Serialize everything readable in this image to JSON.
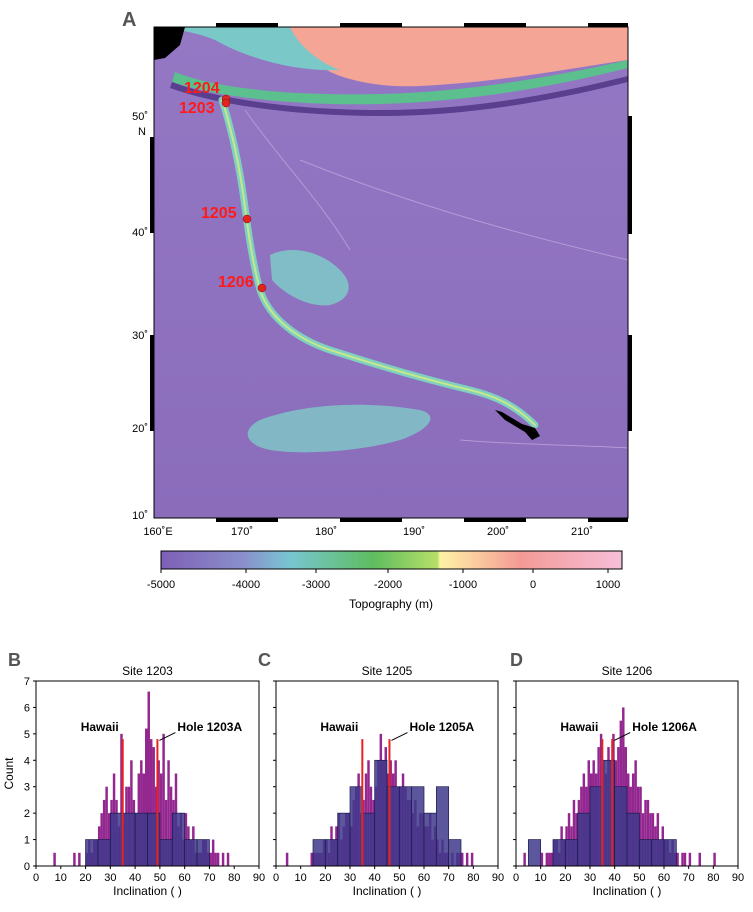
{
  "panels": {
    "a": "A",
    "b": "B",
    "c": "C",
    "d": "D"
  },
  "map": {
    "lat_ticks": [
      "50˚",
      "40˚",
      "30˚",
      "20˚",
      "10˚"
    ],
    "lat_unit": "N",
    "lon_ticks": [
      "160˚E",
      "170˚",
      "180˚",
      "190˚",
      "200˚",
      "210˚"
    ],
    "sites": [
      "1204",
      "1203",
      "1205",
      "1206"
    ],
    "colors": {
      "site": "#ff1a1a",
      "ocean": "#8f6fbd",
      "chain": "#7fd0c0",
      "land": "#000000",
      "highland": "#f4a596"
    }
  },
  "colorbar": {
    "ticks": [
      "-5000",
      "-4000",
      "-3000",
      "-2000",
      "-1000",
      "0",
      "1000"
    ],
    "label": "Topography (m)",
    "stops": [
      "#7e5fb6",
      "#77c6d1",
      "#5fbd60",
      "#b6e068",
      "#fff2a5",
      "#f49a96",
      "#f7bfd9"
    ]
  },
  "chart_data": [
    {
      "type": "bar",
      "title": "Site 1203",
      "xlabel": "Inclination ( )",
      "ylabel": "Count",
      "xlim": [
        0,
        90
      ],
      "ylim": [
        0,
        7
      ],
      "xticks": [
        0,
        10,
        20,
        30,
        40,
        50,
        60,
        70,
        80,
        90
      ],
      "yticks": [
        0,
        1,
        2,
        3,
        4,
        5,
        6,
        7
      ],
      "fine_bin_width": 1,
      "fine_bins_start": 7,
      "fine_counts": [
        0.5,
        0,
        0,
        0,
        0,
        0,
        0,
        0,
        0.5,
        0,
        0.5,
        0,
        0,
        0.5,
        1,
        0.5,
        1,
        1,
        1.5,
        2,
        2.5,
        3,
        2,
        2.5,
        3.5,
        2.5,
        1.5,
        5,
        2,
        3,
        3,
        4,
        2.5,
        2,
        3.5,
        4,
        3.5,
        5.2,
        6.6,
        4.8,
        4.5,
        3,
        4,
        3.5,
        5,
        2.5,
        4,
        3,
        2.5,
        3.5,
        1.5,
        2,
        1,
        2,
        1.5,
        1,
        1.5,
        0.5,
        0.5,
        0.5,
        1,
        1,
        0.5,
        0.5,
        1,
        0.5,
        0.5,
        0,
        0.5,
        0,
        0.5
      ],
      "coarse_bin_width": 5,
      "coarse_bins": [
        [
          20,
          1
        ],
        [
          25,
          1
        ],
        [
          30,
          2
        ],
        [
          35,
          2
        ],
        [
          40,
          2
        ],
        [
          45,
          2
        ],
        [
          50,
          1
        ],
        [
          55,
          2
        ],
        [
          60,
          1
        ],
        [
          65,
          1
        ],
        [
          70,
          0
        ]
      ],
      "reference_lines": [
        {
          "label": "Hawaii",
          "x": 35
        },
        {
          "label": "Hole 1203A",
          "x": 49
        }
      ],
      "colors": {
        "fine": "#93278f",
        "coarse": "#3f3a8c",
        "line": "#e8231f"
      }
    },
    {
      "type": "bar",
      "title": "Site 1205",
      "xlabel": "Inclination ( )",
      "ylabel": "",
      "xlim": [
        0,
        90
      ],
      "ylim": [
        0,
        7
      ],
      "xticks": [
        0,
        10,
        20,
        30,
        40,
        50,
        60,
        70,
        80,
        90
      ],
      "yticks": [
        0,
        1,
        2,
        3,
        4,
        5,
        6,
        7
      ],
      "fine_bin_width": 1,
      "fine_bins_start": 4,
      "fine_counts": [
        0.5,
        0,
        0,
        0,
        0,
        0,
        0,
        0,
        0,
        0,
        0.5,
        0.5,
        0.5,
        0.5,
        0.5,
        1,
        1,
        0.5,
        1.5,
        1,
        1.5,
        2,
        1,
        1.5,
        2,
        2,
        1.5,
        2.5,
        3,
        3.5,
        2,
        2.5,
        3.5,
        4,
        3,
        2.5,
        3,
        4,
        5,
        4,
        4.5,
        3.5,
        4,
        3.5,
        4,
        3,
        3,
        3.5,
        3,
        2.5,
        2.5,
        2,
        2.5,
        1.5,
        2,
        2,
        1.5,
        1.5,
        2,
        1,
        1.5,
        1,
        0.5,
        1,
        0.5,
        0.5,
        0,
        0.5,
        0,
        0.5,
        0.5,
        0.5,
        0,
        0.5,
        0,
        0.5
      ],
      "coarse_bin_width": 5,
      "coarse_bins": [
        [
          15,
          1
        ],
        [
          20,
          1
        ],
        [
          25,
          2
        ],
        [
          30,
          3
        ],
        [
          35,
          2
        ],
        [
          40,
          4
        ],
        [
          45,
          3
        ],
        [
          50,
          3
        ],
        [
          55,
          3
        ],
        [
          60,
          2
        ],
        [
          65,
          3
        ],
        [
          70,
          1
        ]
      ],
      "reference_lines": [
        {
          "label": "Hawaii",
          "x": 35
        },
        {
          "label": "Hole 1205A",
          "x": 46
        }
      ],
      "colors": {
        "fine": "#93278f",
        "coarse": "#3f3a8c",
        "line": "#e8231f"
      }
    },
    {
      "type": "bar",
      "title": "Site 1206",
      "xlabel": "Inclination ( )",
      "ylabel": "",
      "xlim": [
        0,
        90
      ],
      "ylim": [
        0,
        7
      ],
      "xticks": [
        0,
        10,
        20,
        30,
        40,
        50,
        60,
        70,
        80,
        90
      ],
      "yticks": [
        0,
        1,
        2,
        3,
        4,
        5,
        6,
        7
      ],
      "fine_bin_width": 1,
      "fine_bins_start": 3,
      "fine_counts": [
        0.5,
        0,
        0,
        0,
        0,
        0,
        0,
        0.5,
        0,
        0.5,
        0.5,
        0.5,
        1,
        1,
        0.5,
        1.5,
        1,
        1.5,
        2,
        1.5,
        2.5,
        2,
        2.5,
        3,
        3.5,
        3,
        4,
        3.5,
        4,
        3.5,
        4.5,
        5,
        4,
        3.5,
        4.5,
        4,
        5,
        4,
        4.5,
        5.5,
        6,
        4.5,
        3.5,
        3,
        3.5,
        4,
        3,
        3,
        2,
        2.5,
        2.5,
        2,
        2,
        1.5,
        2,
        1,
        1.5,
        1,
        1,
        0.5,
        1,
        0.5,
        0.5,
        0,
        0.5,
        0.5,
        0,
        0.5,
        0,
        0,
        0,
        0.5,
        0,
        0,
        0,
        0,
        0,
        0.5
      ],
      "coarse_bin_width": 5,
      "coarse_bins": [
        [
          5,
          1
        ],
        [
          10,
          0
        ],
        [
          15,
          1
        ],
        [
          20,
          1
        ],
        [
          25,
          2
        ],
        [
          30,
          3
        ],
        [
          35,
          4
        ],
        [
          40,
          3
        ],
        [
          45,
          2
        ],
        [
          50,
          1
        ],
        [
          55,
          1
        ],
        [
          60,
          1
        ],
        [
          65,
          0
        ]
      ],
      "reference_lines": [
        {
          "label": "Hawaii",
          "x": 35
        },
        {
          "label": "Hole 1206A",
          "x": 39
        }
      ],
      "colors": {
        "fine": "#93278f",
        "coarse": "#3f3a8c",
        "line": "#e8231f"
      }
    }
  ]
}
